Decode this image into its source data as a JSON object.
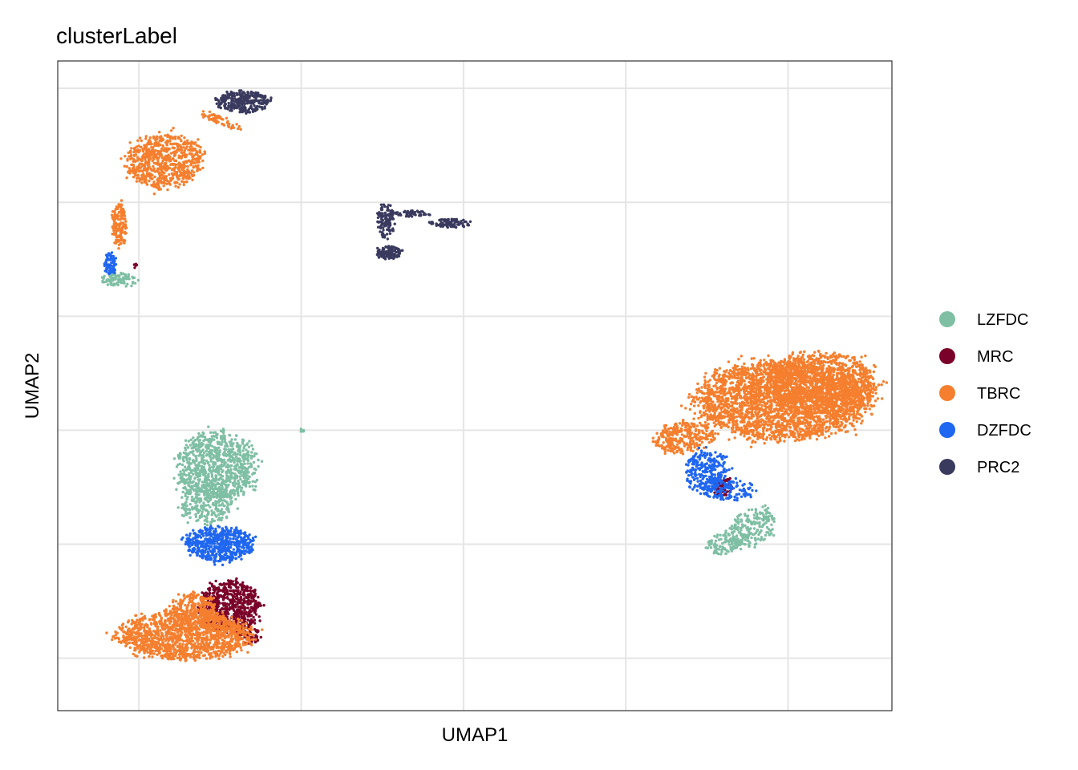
{
  "chart_data": {
    "type": "scatter",
    "title": "clusterLabel",
    "xlabel": "UMAP1",
    "ylabel": "UMAP2",
    "xlim": [
      -2.5,
      23.2
    ],
    "ylim": [
      -12.3,
      16.2
    ],
    "grid": true,
    "x_gridlines": [
      0,
      5,
      10,
      15,
      20
    ],
    "y_gridlines": [
      -10,
      -5,
      0,
      5,
      10,
      15
    ],
    "legend": {
      "placement": "right"
    },
    "series": [
      {
        "name": "LZFDC",
        "color": "#7FBFA4",
        "clusters": [
          {
            "cx": 2.4,
            "cy": -1.6,
            "rx": 1.3,
            "ry": 1.6,
            "n": 900
          },
          {
            "cx": 2.1,
            "cy": -3.2,
            "rx": 0.9,
            "ry": 1.0,
            "n": 250
          },
          {
            "cx": 18.9,
            "cy": -4.3,
            "rx": 0.7,
            "ry": 1.0,
            "n": 220,
            "rot": -0.6
          },
          {
            "cx": 18.0,
            "cy": -5.0,
            "rx": 0.5,
            "ry": 0.5,
            "n": 90
          },
          {
            "cx": -0.6,
            "cy": 6.6,
            "rx": 0.6,
            "ry": 0.3,
            "n": 90
          },
          {
            "cx": 5.0,
            "cy": 0.0,
            "rx": 0.1,
            "ry": 0.08,
            "n": 6
          }
        ]
      },
      {
        "name": "MRC",
        "color": "#7A0129",
        "clusters": [
          {
            "cx": 2.8,
            "cy": -7.7,
            "rx": 1.0,
            "ry": 1.2,
            "n": 650
          },
          {
            "cx": 3.4,
            "cy": -9.0,
            "rx": 0.4,
            "ry": 0.4,
            "n": 60
          },
          {
            "cx": 18.0,
            "cy": -2.5,
            "rx": 0.35,
            "ry": 0.4,
            "n": 80
          },
          {
            "cx": -0.1,
            "cy": 7.2,
            "rx": 0.1,
            "ry": 0.1,
            "n": 5
          }
        ]
      },
      {
        "name": "TBRC",
        "color": "#F57F2E",
        "clusters": [
          {
            "cx": 1.4,
            "cy": -9.0,
            "rx": 2.2,
            "ry": 1.1,
            "n": 1300
          },
          {
            "cx": 1.7,
            "cy": -8.0,
            "rx": 0.8,
            "ry": 0.9,
            "n": 300
          },
          {
            "cx": 0.8,
            "cy": 11.8,
            "rx": 1.2,
            "ry": 1.3,
            "n": 700,
            "rot": -0.7
          },
          {
            "cx": -0.6,
            "cy": 9.0,
            "rx": 0.25,
            "ry": 1.0,
            "n": 150
          },
          {
            "cx": 2.5,
            "cy": 13.6,
            "rx": 0.8,
            "ry": 0.2,
            "n": 60,
            "rot": -0.5
          },
          {
            "cx": 19.8,
            "cy": 1.3,
            "rx": 2.8,
            "ry": 1.8,
            "n": 2600,
            "rot": 0.0
          },
          {
            "cx": 21.0,
            "cy": 2.0,
            "rx": 1.8,
            "ry": 1.5,
            "n": 1200
          },
          {
            "cx": 16.8,
            "cy": -0.3,
            "rx": 1.0,
            "ry": 0.7,
            "n": 300,
            "rot": 0.3
          }
        ]
      },
      {
        "name": "DZFDC",
        "color": "#1F66F0",
        "clusters": [
          {
            "cx": 2.5,
            "cy": -5.0,
            "rx": 1.1,
            "ry": 0.8,
            "n": 550
          },
          {
            "cx": 17.5,
            "cy": -1.8,
            "rx": 0.7,
            "ry": 1.0,
            "n": 280
          },
          {
            "cx": 18.2,
            "cy": -2.6,
            "rx": 0.8,
            "ry": 0.5,
            "n": 120
          },
          {
            "cx": -0.9,
            "cy": 7.3,
            "rx": 0.2,
            "ry": 0.5,
            "n": 80
          }
        ]
      },
      {
        "name": "PRC2",
        "color": "#3A3A5F",
        "clusters": [
          {
            "cx": 3.2,
            "cy": 14.4,
            "rx": 0.9,
            "ry": 0.5,
            "n": 280
          },
          {
            "cx": 7.7,
            "cy": 7.8,
            "rx": 0.4,
            "ry": 0.3,
            "n": 120
          },
          {
            "cx": 7.6,
            "cy": 9.2,
            "rx": 0.3,
            "ry": 0.8,
            "n": 120
          },
          {
            "cx": 9.6,
            "cy": 9.1,
            "rx": 0.7,
            "ry": 0.2,
            "n": 90
          },
          {
            "cx": 8.4,
            "cy": 9.5,
            "rx": 0.6,
            "ry": 0.15,
            "n": 50
          }
        ]
      }
    ]
  }
}
